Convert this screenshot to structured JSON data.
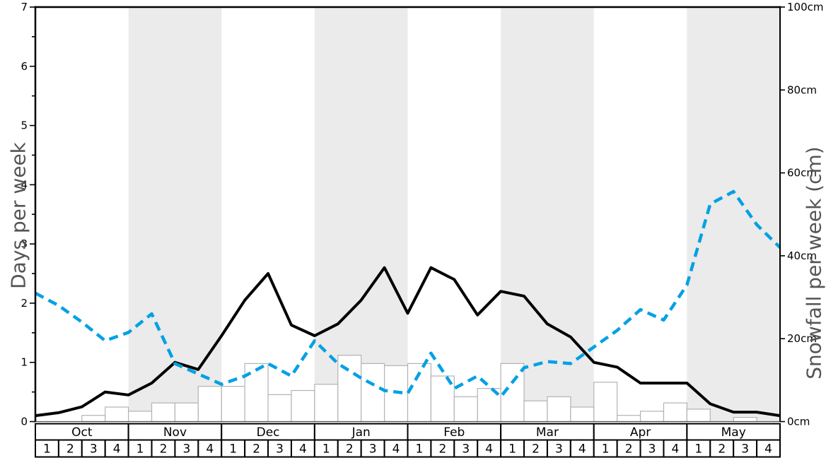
{
  "chart_data": {
    "type": "composite",
    "months": [
      "Oct",
      "Nov",
      "Dec",
      "Jan",
      "Feb",
      "Mar",
      "Apr",
      "May"
    ],
    "week_labels": [
      "1",
      "2",
      "3",
      "4"
    ],
    "shaded_months": [
      "Nov",
      "Jan",
      "Mar",
      "May"
    ],
    "left_axis": {
      "title": "Days per week",
      "min": 0,
      "max": 7,
      "major_tick_labels": [
        "0",
        "1",
        "2",
        "3",
        "4",
        "5",
        "6",
        "7"
      ],
      "minor_tick_step": 0.5
    },
    "right_axis": {
      "title": "Snowfall per week (cm)",
      "min": 0,
      "max": 100,
      "tick_step": 20,
      "tick_labels": [
        "0cm",
        "20cm",
        "40cm",
        "60cm",
        "80cm",
        "100cm"
      ]
    },
    "x_mode": "week_boundaries",
    "grid": "off",
    "legend": "none",
    "series": [
      {
        "name": "snow_days_per_week",
        "type": "line",
        "axis": "left",
        "line_style": "solid",
        "color": "#000000",
        "values": [
          0.1,
          0.15,
          0.25,
          0.5,
          0.45,
          0.65,
          1.0,
          0.88,
          1.45,
          2.05,
          2.5,
          1.63,
          1.45,
          1.65,
          2.05,
          2.6,
          1.83,
          2.6,
          2.4,
          1.8,
          2.2,
          2.12,
          1.65,
          1.43,
          1.0,
          0.92,
          0.65,
          0.65,
          0.65,
          0.3,
          0.16,
          0.16,
          0.1
        ]
      },
      {
        "name": "snowfall_per_week_cm",
        "type": "line",
        "axis": "right",
        "line_style": "dashed",
        "color": "#00a1e4",
        "values": [
          31,
          28,
          24,
          19.5,
          21.5,
          26,
          14,
          11.5,
          9,
          11,
          14,
          11,
          19.5,
          14,
          10.5,
          7.5,
          6.8,
          16.5,
          8,
          11,
          6,
          13,
          14.5,
          14,
          18,
          22,
          27,
          24.5,
          33,
          52.5,
          55.5,
          47.5,
          42
        ]
      },
      {
        "name": "snowfall_bars_cm",
        "type": "bar",
        "axis": "right",
        "fill": "#ffffff",
        "stroke": "#b3b3b3",
        "values": [
          0,
          0,
          1.5,
          3.5,
          2.5,
          4.5,
          4.5,
          8.5,
          8.5,
          14,
          6.5,
          7.5,
          9,
          16,
          14,
          13.5,
          14,
          11,
          6,
          8,
          14,
          5,
          6,
          3.5,
          9.5,
          1.5,
          2.5,
          4.5,
          3,
          0,
          1,
          0
        ]
      }
    ],
    "colors": {
      "band": "#ebebeb",
      "axis_title": "#555555",
      "tick_label": "#000000",
      "frame": "#000000",
      "table_border": "#000000",
      "table_fill": "#ffffff"
    }
  }
}
